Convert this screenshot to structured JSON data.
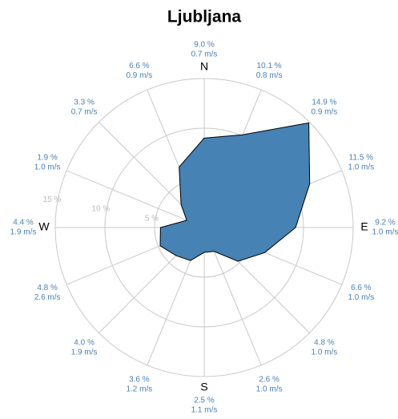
{
  "chart_data": {
    "type": "radar",
    "title": "Ljubljana",
    "categories": [
      "N",
      null,
      null,
      null,
      "E",
      null,
      null,
      null,
      "S",
      null,
      null,
      null,
      "W",
      null,
      null,
      null
    ],
    "values": [
      9.0,
      10.1,
      14.9,
      11.5,
      9.2,
      6.6,
      4.8,
      2.6,
      2.5,
      3.6,
      4.0,
      4.8,
      4.4,
      1.9,
      3.3,
      6.6
    ],
    "value_labels": [
      "9.0 %",
      "10.1 %",
      "14.9 %",
      "11.5 %",
      "9.2 %",
      "6.6 %",
      "4.8 %",
      "2.6 %",
      "2.5 %",
      "3.6 %",
      "4.0 %",
      "4.8 %",
      "4.4 %",
      "1.9 %",
      "3.3 %",
      "6.6 %"
    ],
    "speed_labels": [
      "0.7 m/s",
      "0.8 m/s",
      "0.9 m/s",
      "1.0 m/s",
      "1.0 m/s",
      "1.0 m/s",
      "1.0 m/s",
      "1.0 m/s",
      "1.1 m/s",
      "1.2 m/s",
      "1.9 m/s",
      "2.6 m/s",
      "1.9 m/s",
      "1.0 m/s",
      "0.7 m/s",
      "0.9 m/s"
    ],
    "color": "#4682b4",
    "rlim": [
      0,
      15
    ],
    "rticks": [
      {
        "value": 5,
        "label": "5 %"
      },
      {
        "value": 10,
        "label": "10 %"
      },
      {
        "value": 15,
        "label": "15 %"
      }
    ],
    "grid": true
  }
}
